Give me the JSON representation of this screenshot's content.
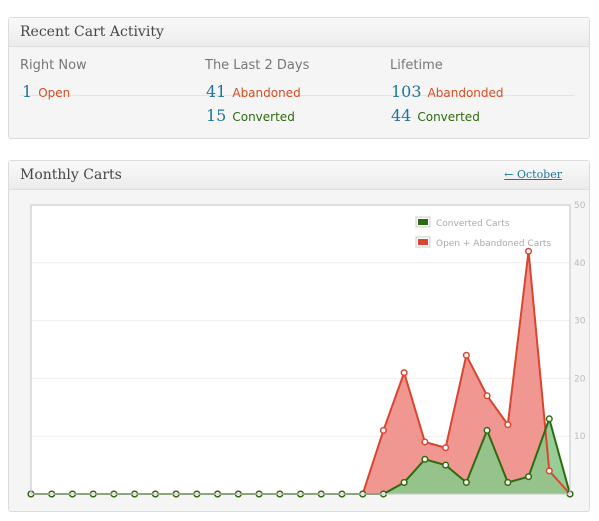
{
  "activity": {
    "title": "Recent Cart Activity",
    "columns": [
      {
        "heading": "Right Now"
      },
      {
        "heading": "The Last 2 Days"
      },
      {
        "heading": "Lifetime"
      }
    ],
    "right_now": {
      "open_count": "1",
      "open_label": "Open"
    },
    "last_2_days": {
      "abandoned_count": "41",
      "abandoned_label": "Abandoned",
      "converted_count": "15",
      "converted_label": "Converted"
    },
    "lifetime": {
      "abandoned_count": "103",
      "abandoned_label": "Abandonded",
      "converted_count": "44",
      "converted_label": "Converted"
    }
  },
  "monthly": {
    "title": "Monthly Carts",
    "prev_link": "← October"
  },
  "colors": {
    "open_abandoned_line": "#d9452f",
    "open_abandoned_fill": "#f08c85",
    "converted_line": "#2e6a0e",
    "converted_fill": "#8cc88c"
  },
  "chart_data": {
    "type": "area",
    "x": [
      1,
      2,
      3,
      4,
      5,
      6,
      7,
      8,
      9,
      10,
      11,
      12,
      13,
      14,
      15,
      16,
      17,
      18,
      19,
      20,
      21,
      22,
      23,
      24,
      25,
      26,
      27
    ],
    "ylim": [
      0,
      50
    ],
    "yticks": [
      "50",
      "40",
      "30",
      "20",
      "10"
    ],
    "grid": true,
    "legend": "top-right",
    "series": [
      {
        "name": "Converted Carts",
        "values": [
          0,
          0,
          0,
          0,
          0,
          0,
          0,
          0,
          0,
          0,
          0,
          0,
          0,
          0,
          0,
          0,
          0,
          0,
          2,
          6,
          5,
          2,
          11,
          2,
          3,
          13,
          0
        ]
      },
      {
        "name": "Open + Abandoned Carts",
        "values": [
          0,
          0,
          0,
          0,
          0,
          0,
          0,
          0,
          0,
          0,
          0,
          0,
          0,
          0,
          0,
          0,
          0,
          11,
          21,
          9,
          8,
          24,
          17,
          12,
          42,
          4,
          0
        ]
      }
    ]
  }
}
